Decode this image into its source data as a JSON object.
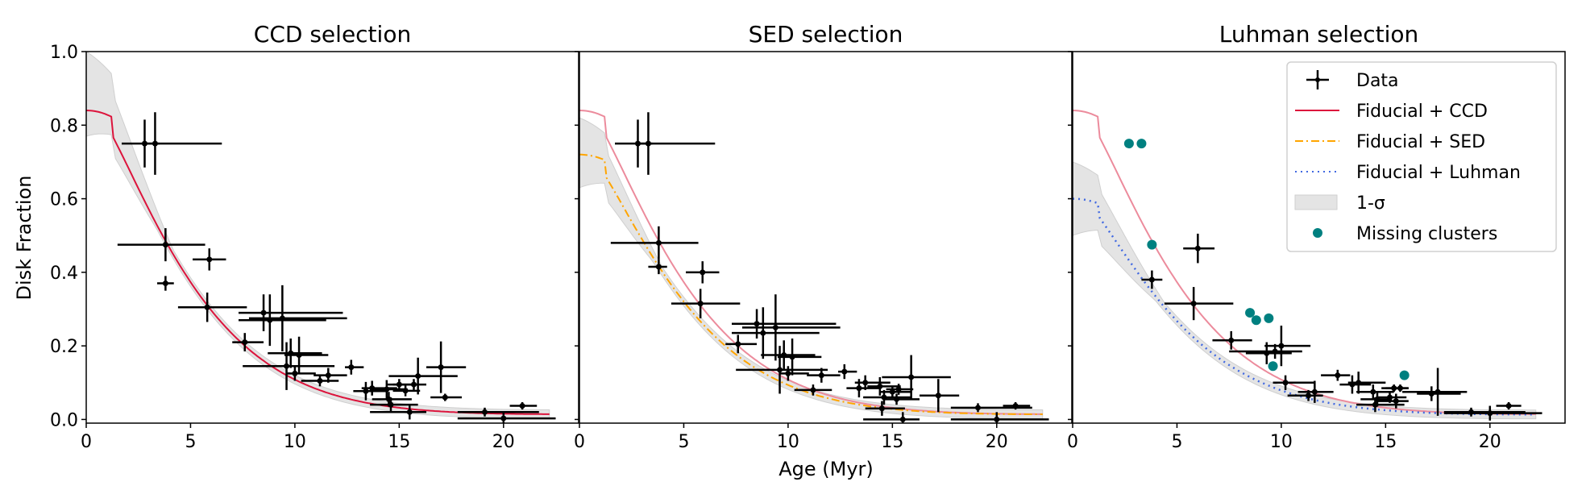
{
  "chart_data": {
    "type": "scatter",
    "figure": {
      "ylabel": "Disk Fraction",
      "xlabel": "Age (Myr)",
      "xlim": [
        0,
        23.6
      ],
      "ylim": [
        -0.01,
        1.0
      ],
      "xticks": [
        0,
        5,
        10,
        15,
        20
      ],
      "xtick_labels": [
        "0",
        "5",
        "10",
        "15",
        "20"
      ],
      "yticks": [
        0.0,
        0.2,
        0.4,
        0.6,
        0.8,
        1.0
      ],
      "ytick_labels": [
        "0.0",
        "0.2",
        "0.4",
        "0.6",
        "0.8",
        "1.0"
      ],
      "grid": false,
      "colors": {
        "ccd": "#dc143c",
        "ccd_faded": "#ec8b9c",
        "sed": "#ffa500",
        "luhman": "#4169e1",
        "band": "#e4e4e4",
        "band_edge": "#cfcfcf",
        "missing": "#008080",
        "data": "#000000"
      }
    },
    "legend": {
      "placement": "upper-right of third panel",
      "entries": [
        {
          "key": "data",
          "label": "Data"
        },
        {
          "key": "ccd",
          "label": "Fiducial + CCD"
        },
        {
          "key": "sed",
          "label": "Fiducial + SED"
        },
        {
          "key": "luhman",
          "label": "Fiducial + Luhman"
        },
        {
          "key": "band",
          "label": "1-σ"
        },
        {
          "key": "missing",
          "label": "Missing clusters"
        }
      ]
    },
    "panels": [
      {
        "title": "CCD selection",
        "model": {
          "key": "ccd",
          "f0": 0.84,
          "style": "solid"
        },
        "overlay_ccd": false,
        "band": {
          "upper0": 1.0,
          "lower0": 0.77,
          "x_join": 4.5
        },
        "data": [
          {
            "x": 2.8,
            "y": 0.75,
            "xlo": 1.7,
            "xhi": 3.5,
            "yerr": 0.065
          },
          {
            "x": 3.3,
            "y": 0.75,
            "xlo": 2.8,
            "xhi": 6.5,
            "yerr": 0.085
          },
          {
            "x": 3.8,
            "y": 0.475,
            "xlo": 1.5,
            "xhi": 5.7,
            "yerr": 0.045
          },
          {
            "x": 3.8,
            "y": 0.37,
            "xlo": 3.4,
            "xhi": 4.2,
            "yerr": 0.02
          },
          {
            "x": 5.9,
            "y": 0.435,
            "xlo": 5.1,
            "xhi": 6.7,
            "yerr": 0.03
          },
          {
            "x": 5.8,
            "y": 0.305,
            "xlo": 4.4,
            "xhi": 7.7,
            "yerr": 0.04
          },
          {
            "x": 8.5,
            "y": 0.29,
            "xlo": 7.3,
            "xhi": 12.3,
            "yerr": 0.05
          },
          {
            "x": 8.8,
            "y": 0.27,
            "xlo": 7.3,
            "xhi": 11.5,
            "yerr": 0.07
          },
          {
            "x": 9.4,
            "y": 0.275,
            "xlo": 7.8,
            "xhi": 12.5,
            "yerr": 0.09
          },
          {
            "x": 7.6,
            "y": 0.21,
            "xlo": 7.0,
            "xhi": 8.5,
            "yerr": 0.025
          },
          {
            "x": 9.8,
            "y": 0.18,
            "xlo": 8.7,
            "xhi": 11.3,
            "yerr": 0.04
          },
          {
            "x": 10.2,
            "y": 0.175,
            "xlo": 9.5,
            "xhi": 11.6,
            "yerr": 0.05
          },
          {
            "x": 9.6,
            "y": 0.145,
            "xlo": 7.5,
            "xhi": 11.9,
            "yerr": 0.065
          },
          {
            "x": 10.0,
            "y": 0.125,
            "xlo": 9.6,
            "xhi": 11.0,
            "yerr": 0.02
          },
          {
            "x": 11.2,
            "y": 0.105,
            "xlo": 10.3,
            "xhi": 12.1,
            "yerr": 0.015
          },
          {
            "x": 11.6,
            "y": 0.12,
            "xlo": 10.9,
            "xhi": 12.5,
            "yerr": 0.02
          },
          {
            "x": 12.7,
            "y": 0.142,
            "xlo": 12.4,
            "xhi": 13.3,
            "yerr": 0.02
          },
          {
            "x": 13.4,
            "y": 0.077,
            "xlo": 12.8,
            "xhi": 14.4,
            "yerr": 0.025
          },
          {
            "x": 13.7,
            "y": 0.085,
            "xlo": 13.2,
            "xhi": 14.9,
            "yerr": 0.02
          },
          {
            "x": 14.4,
            "y": 0.082,
            "xlo": 13.8,
            "xhi": 15.4,
            "yerr": 0.025
          },
          {
            "x": 14.5,
            "y": 0.055,
            "xlo": 13.7,
            "xhi": 15.6,
            "yerr": 0.02
          },
          {
            "x": 14.6,
            "y": 0.04,
            "xlo": 13.6,
            "xhi": 15.9,
            "yerr": 0.02
          },
          {
            "x": 15.0,
            "y": 0.095,
            "xlo": 14.4,
            "xhi": 15.9,
            "yerr": 0.015
          },
          {
            "x": 15.3,
            "y": 0.078,
            "xlo": 14.7,
            "xhi": 16.0,
            "yerr": 0.015
          },
          {
            "x": 15.5,
            "y": 0.02,
            "xlo": 13.6,
            "xhi": 16.3,
            "yerr": 0.02
          },
          {
            "x": 15.7,
            "y": 0.095,
            "xlo": 14.7,
            "xhi": 16.3,
            "yerr": 0.015
          },
          {
            "x": 15.9,
            "y": 0.118,
            "xlo": 14.5,
            "xhi": 17.8,
            "yerr": 0.05
          },
          {
            "x": 17.0,
            "y": 0.142,
            "xlo": 16.3,
            "xhi": 18.2,
            "yerr": 0.07
          },
          {
            "x": 17.2,
            "y": 0.06,
            "xlo": 16.5,
            "xhi": 18.0,
            "yerr": 0.01
          },
          {
            "x": 19.1,
            "y": 0.02,
            "xlo": 17.8,
            "xhi": 21.7,
            "yerr": 0.012
          },
          {
            "x": 20.0,
            "y": 0.003,
            "xlo": 17.8,
            "xhi": 22.5,
            "yerr": 0.015
          },
          {
            "x": 20.9,
            "y": 0.037,
            "xlo": 20.3,
            "xhi": 21.6,
            "yerr": 0.01
          }
        ],
        "missing": []
      },
      {
        "title": "SED selection",
        "model": {
          "key": "sed",
          "f0": 0.72,
          "style": "dashdot"
        },
        "overlay_ccd": true,
        "band": {
          "upper0": 0.82,
          "lower0": 0.63,
          "x_join": 4.5
        },
        "data": [
          {
            "x": 2.8,
            "y": 0.75,
            "xlo": 1.7,
            "xhi": 3.5,
            "yerr": 0.065
          },
          {
            "x": 3.3,
            "y": 0.75,
            "xlo": 2.8,
            "xhi": 6.5,
            "yerr": 0.085
          },
          {
            "x": 3.8,
            "y": 0.48,
            "xlo": 1.5,
            "xhi": 5.7,
            "yerr": 0.045
          },
          {
            "x": 3.8,
            "y": 0.415,
            "xlo": 3.3,
            "xhi": 4.2,
            "yerr": 0.02
          },
          {
            "x": 5.9,
            "y": 0.4,
            "xlo": 5.1,
            "xhi": 6.7,
            "yerr": 0.03
          },
          {
            "x": 5.8,
            "y": 0.315,
            "xlo": 4.4,
            "xhi": 7.7,
            "yerr": 0.04
          },
          {
            "x": 8.5,
            "y": 0.26,
            "xlo": 7.3,
            "xhi": 12.3,
            "yerr": 0.04
          },
          {
            "x": 8.8,
            "y": 0.235,
            "xlo": 7.3,
            "xhi": 11.5,
            "yerr": 0.07
          },
          {
            "x": 9.4,
            "y": 0.25,
            "xlo": 7.8,
            "xhi": 12.5,
            "yerr": 0.09
          },
          {
            "x": 7.6,
            "y": 0.205,
            "xlo": 7.0,
            "xhi": 8.5,
            "yerr": 0.025
          },
          {
            "x": 9.8,
            "y": 0.175,
            "xlo": 8.7,
            "xhi": 11.3,
            "yerr": 0.04
          },
          {
            "x": 10.2,
            "y": 0.17,
            "xlo": 9.5,
            "xhi": 11.6,
            "yerr": 0.05
          },
          {
            "x": 9.6,
            "y": 0.135,
            "xlo": 7.5,
            "xhi": 11.9,
            "yerr": 0.065
          },
          {
            "x": 10.0,
            "y": 0.125,
            "xlo": 9.6,
            "xhi": 11.0,
            "yerr": 0.02
          },
          {
            "x": 11.2,
            "y": 0.08,
            "xlo": 10.3,
            "xhi": 12.1,
            "yerr": 0.015
          },
          {
            "x": 11.6,
            "y": 0.12,
            "xlo": 10.9,
            "xhi": 12.5,
            "yerr": 0.02
          },
          {
            "x": 12.7,
            "y": 0.13,
            "xlo": 12.4,
            "xhi": 13.3,
            "yerr": 0.02
          },
          {
            "x": 13.4,
            "y": 0.085,
            "xlo": 12.8,
            "xhi": 14.4,
            "yerr": 0.025
          },
          {
            "x": 13.7,
            "y": 0.1,
            "xlo": 13.2,
            "xhi": 14.9,
            "yerr": 0.02
          },
          {
            "x": 14.4,
            "y": 0.09,
            "xlo": 13.8,
            "xhi": 15.4,
            "yerr": 0.025
          },
          {
            "x": 14.5,
            "y": 0.03,
            "xlo": 13.7,
            "xhi": 15.6,
            "yerr": 0.02
          },
          {
            "x": 14.6,
            "y": 0.06,
            "xlo": 13.6,
            "xhi": 15.9,
            "yerr": 0.02
          },
          {
            "x": 15.0,
            "y": 0.075,
            "xlo": 14.4,
            "xhi": 15.9,
            "yerr": 0.015
          },
          {
            "x": 15.3,
            "y": 0.082,
            "xlo": 14.7,
            "xhi": 16.0,
            "yerr": 0.015
          },
          {
            "x": 15.5,
            "y": 0.0,
            "xlo": 13.6,
            "xhi": 16.3,
            "yerr": 0.02
          },
          {
            "x": 15.2,
            "y": 0.055,
            "xlo": 14.6,
            "xhi": 16.3,
            "yerr": 0.015
          },
          {
            "x": 15.9,
            "y": 0.115,
            "xlo": 14.5,
            "xhi": 17.8,
            "yerr": 0.06
          },
          {
            "x": 17.2,
            "y": 0.065,
            "xlo": 16.3,
            "xhi": 18.2,
            "yerr": 0.045
          },
          {
            "x": 19.1,
            "y": 0.032,
            "xlo": 17.8,
            "xhi": 21.7,
            "yerr": 0.012
          },
          {
            "x": 20.0,
            "y": 0.0,
            "xlo": 17.8,
            "xhi": 22.5,
            "yerr": 0.02
          },
          {
            "x": 20.9,
            "y": 0.037,
            "xlo": 20.3,
            "xhi": 21.6,
            "yerr": 0.01
          }
        ],
        "missing": []
      },
      {
        "title": "Luhman selection",
        "model": {
          "key": "luhman",
          "f0": 0.6,
          "style": "dotted"
        },
        "overlay_ccd": true,
        "band": {
          "upper0": 0.7,
          "lower0": 0.5,
          "x_join": 5.0
        },
        "data": [
          {
            "x": 3.8,
            "y": 0.38,
            "xlo": 3.3,
            "xhi": 4.3,
            "yerr": 0.025
          },
          {
            "x": 6.0,
            "y": 0.465,
            "xlo": 5.3,
            "xhi": 6.8,
            "yerr": 0.04
          },
          {
            "x": 5.8,
            "y": 0.315,
            "xlo": 4.4,
            "xhi": 7.7,
            "yerr": 0.045
          },
          {
            "x": 7.6,
            "y": 0.215,
            "xlo": 6.7,
            "xhi": 8.6,
            "yerr": 0.025
          },
          {
            "x": 9.3,
            "y": 0.18,
            "xlo": 8.3,
            "xhi": 10.5,
            "yerr": 0.03
          },
          {
            "x": 10.0,
            "y": 0.2,
            "xlo": 9.2,
            "xhi": 11.4,
            "yerr": 0.055
          },
          {
            "x": 9.7,
            "y": 0.185,
            "xlo": 7.5,
            "xhi": 11.0,
            "yerr": 0.02
          },
          {
            "x": 10.2,
            "y": 0.1,
            "xlo": 9.6,
            "xhi": 11.6,
            "yerr": 0.02
          },
          {
            "x": 11.6,
            "y": 0.075,
            "xlo": 10.8,
            "xhi": 12.5,
            "yerr": 0.03
          },
          {
            "x": 11.3,
            "y": 0.065,
            "xlo": 10.3,
            "xhi": 12.0,
            "yerr": 0.015
          },
          {
            "x": 12.7,
            "y": 0.12,
            "xlo": 11.9,
            "xhi": 13.3,
            "yerr": 0.015
          },
          {
            "x": 13.4,
            "y": 0.095,
            "xlo": 12.8,
            "xhi": 14.3,
            "yerr": 0.025
          },
          {
            "x": 13.7,
            "y": 0.1,
            "xlo": 13.2,
            "xhi": 15.0,
            "yerr": 0.03
          },
          {
            "x": 14.4,
            "y": 0.075,
            "xlo": 13.6,
            "xhi": 15.4,
            "yerr": 0.02
          },
          {
            "x": 14.6,
            "y": 0.055,
            "xlo": 13.8,
            "xhi": 15.3,
            "yerr": 0.02
          },
          {
            "x": 14.5,
            "y": 0.04,
            "xlo": 13.6,
            "xhi": 15.9,
            "yerr": 0.02
          },
          {
            "x": 15.2,
            "y": 0.06,
            "xlo": 14.6,
            "xhi": 16.0,
            "yerr": 0.015
          },
          {
            "x": 15.5,
            "y": 0.05,
            "xlo": 14.6,
            "xhi": 16.1,
            "yerr": 0.02
          },
          {
            "x": 15.4,
            "y": 0.085,
            "xlo": 14.8,
            "xhi": 16.1,
            "yerr": 0.01
          },
          {
            "x": 15.7,
            "y": 0.085,
            "xlo": 15.0,
            "xhi": 16.1,
            "yerr": 0.01
          },
          {
            "x": 17.2,
            "y": 0.07,
            "xlo": 16.5,
            "xhi": 18.6,
            "yerr": 0.02
          },
          {
            "x": 17.5,
            "y": 0.075,
            "xlo": 15.8,
            "xhi": 18.9,
            "yerr": 0.065
          },
          {
            "x": 19.1,
            "y": 0.02,
            "xlo": 17.8,
            "xhi": 21.7,
            "yerr": 0.012
          },
          {
            "x": 20.0,
            "y": 0.017,
            "xlo": 17.8,
            "xhi": 22.5,
            "yerr": 0.02
          },
          {
            "x": 20.9,
            "y": 0.037,
            "xlo": 20.3,
            "xhi": 21.5,
            "yerr": 0.01
          }
        ],
        "missing": [
          {
            "x": 2.7,
            "y": 0.75
          },
          {
            "x": 3.3,
            "y": 0.75
          },
          {
            "x": 3.8,
            "y": 0.475
          },
          {
            "x": 8.5,
            "y": 0.29
          },
          {
            "x": 8.8,
            "y": 0.27
          },
          {
            "x": 9.4,
            "y": 0.275
          },
          {
            "x": 9.6,
            "y": 0.145
          },
          {
            "x": 15.9,
            "y": 0.12
          }
        ]
      }
    ]
  }
}
